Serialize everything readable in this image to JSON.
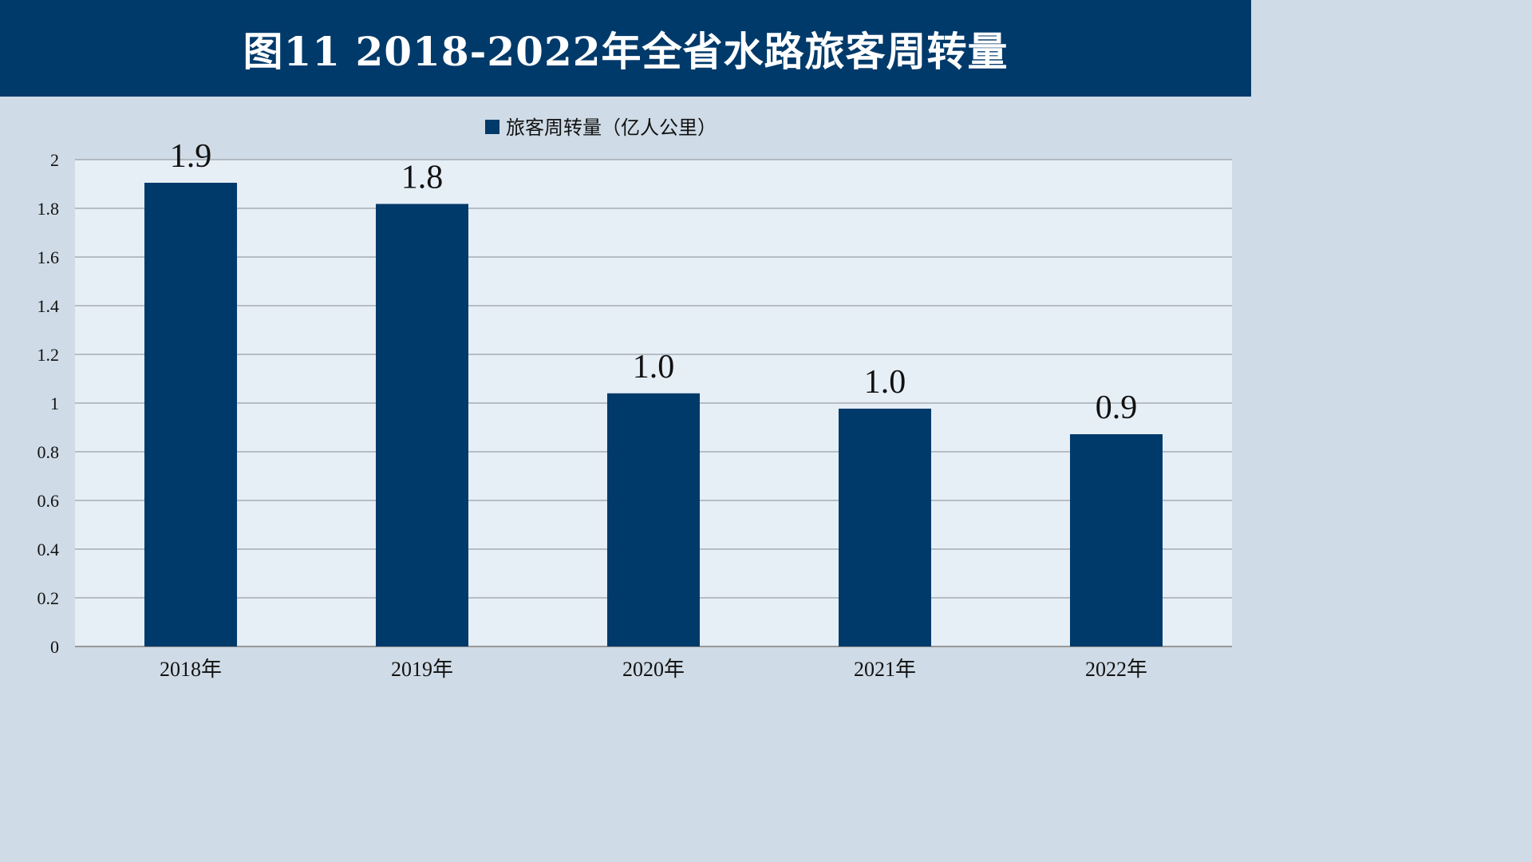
{
  "title": "图11  2018-2022年全省水路旅客周转量",
  "colors": {
    "header_bg": "#003a6a",
    "page_bg": "#cfdbe6",
    "plot_bg": "#e6eef6",
    "bar": "#003a6a"
  },
  "chart_data": {
    "type": "bar",
    "title": "图11  2018-2022年全省水路旅客周转量",
    "categories": [
      "2018年",
      "2019年",
      "2020年",
      "2021年",
      "2022年"
    ],
    "series": [
      {
        "name": "旅客周转量（亿人公里）",
        "values": [
          1.905,
          1.818,
          1.04,
          0.977,
          0.872
        ],
        "labels": [
          "1.9",
          "1.8",
          "1.0",
          "1.0",
          "0.9"
        ]
      }
    ],
    "ylim": [
      0,
      2
    ],
    "yticks": [
      "0",
      "0.2",
      "0.4",
      "0.6",
      "0.8",
      "1",
      "1.2",
      "1.4",
      "1.6",
      "1.8",
      "2"
    ],
    "grid": true,
    "legend": "top-center",
    "xlabel": "",
    "ylabel": ""
  }
}
